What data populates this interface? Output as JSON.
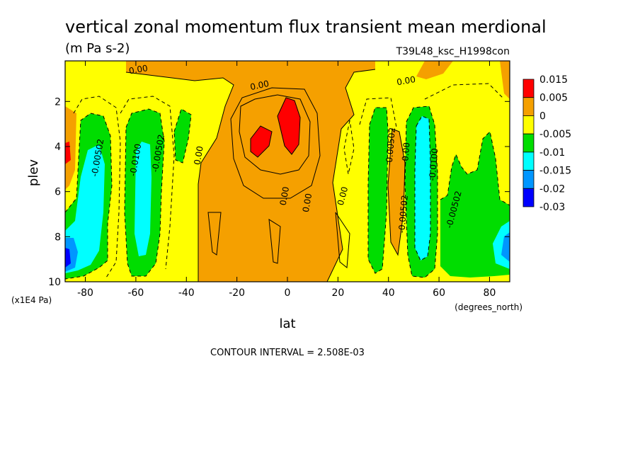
{
  "chart_data": {
    "type": "heatmap",
    "title": "vertical zonal momentum flux transient mean merdional",
    "units": "(m Pa s-2)",
    "run_label": "T39L48_ksc_H1998con",
    "xlabel": "lat",
    "x_units": "(degrees_north)",
    "ylabel": "plev",
    "y_units": "(x1E4 Pa)",
    "xlim": [
      -88,
      88
    ],
    "ylim": [
      10,
      0.2
    ],
    "x_ticks": [
      "-80",
      "-60",
      "-40",
      "-20",
      "0",
      "20",
      "40",
      "60",
      "80"
    ],
    "x_tick_values": [
      -80,
      -60,
      -40,
      -20,
      0,
      20,
      40,
      60,
      80
    ],
    "y_ticks": [
      "2",
      "4",
      "6",
      "8",
      "10"
    ],
    "y_tick_values": [
      2,
      4,
      6,
      8,
      10
    ],
    "legend": {
      "placement": "right",
      "labels": [
        "0.015",
        "0.005",
        "0",
        "-0.005",
        "-0.01",
        "-0.015",
        "-0.02",
        "-0.03"
      ],
      "colors": [
        "#ff0000",
        "#f5a000",
        "#ffff00",
        "#00dd00",
        "#00ffff",
        "#0096ff",
        "#0000ff"
      ]
    },
    "contour_interval_text": "CONTOUR INTERVAL = 2.508E-03",
    "contour_labels": [
      {
        "text": "0.00",
        "lat": -59,
        "plev": 0.6,
        "angle": -10
      },
      {
        "text": "0.00",
        "lat": -11,
        "plev": 1.3,
        "angle": -12
      },
      {
        "text": "0.00",
        "lat": 47,
        "plev": 1.1,
        "angle": -10
      },
      {
        "text": "-0.00502",
        "lat": -75,
        "plev": 4.5,
        "angle": -80
      },
      {
        "text": "-0.0100",
        "lat": -60,
        "plev": 4.6,
        "angle": -80
      },
      {
        "text": "-0.00502",
        "lat": -51,
        "plev": 4.3,
        "angle": -80
      },
      {
        "text": "0.00",
        "lat": -35,
        "plev": 4.4,
        "angle": -80
      },
      {
        "text": "0.00",
        "lat": -1,
        "plev": 6.2,
        "angle": -80
      },
      {
        "text": "0.00",
        "lat": 8,
        "plev": 6.5,
        "angle": -80
      },
      {
        "text": "0.00",
        "lat": 22,
        "plev": 6.2,
        "angle": -75
      },
      {
        "text": "-0.00502",
        "lat": 41,
        "plev": 4.0,
        "angle": -85
      },
      {
        "text": "-0.00",
        "lat": 47,
        "plev": 4.3,
        "angle": -85
      },
      {
        "text": "-0.0100",
        "lat": 58,
        "plev": 4.8,
        "angle": -85
      },
      {
        "text": "-0.00502",
        "lat": 46,
        "plev": 7.0,
        "angle": -85
      },
      {
        "text": "-0.00502",
        "lat": 66,
        "plev": 6.8,
        "angle": -75
      }
    ]
  }
}
